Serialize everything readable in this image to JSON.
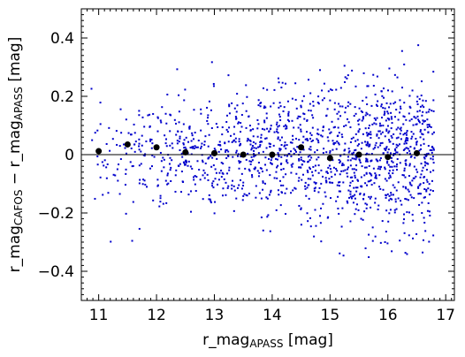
{
  "chart_data": {
    "type": "scatter",
    "xlabel": "r_mag",
    "xlabel_sub": "APASS",
    "xlabel_suffix": " [mag]",
    "ylabel_parts": {
      "a": "r_mag",
      "a_sub": "CAFOS",
      "minus": " − ",
      "b": "r_mag",
      "b_sub": "APASS",
      "suffix": " [mag]"
    },
    "xlim": [
      10.7,
      17.15
    ],
    "ylim": [
      -0.5,
      0.5
    ],
    "x_ticks": [
      11,
      12,
      13,
      14,
      15,
      16,
      17
    ],
    "x_tick_labels": [
      "11",
      "12",
      "13",
      "14",
      "15",
      "16",
      "17"
    ],
    "y_ticks": [
      -0.4,
      -0.2,
      0,
      0.2,
      0.4
    ],
    "y_tick_labels": [
      "−0.4",
      "−0.2",
      "0",
      "0.2",
      "0.4"
    ],
    "zero_line": 0,
    "grid": false,
    "legend": "none",
    "colors": {
      "points": "#0000cc",
      "binned": "#000000",
      "axis": "#000000"
    },
    "series": [
      {
        "marker": "small-dot",
        "description_hidden": false,
        "points_generated": true,
        "count": 1500,
        "x_range": [
          10.8,
          16.8
        ],
        "y_center": 0.0,
        "y_spread": 0.12
      },
      {
        "marker": "large-dot",
        "points": [
          [
            11.0,
            0.012
          ],
          [
            11.5,
            0.035
          ],
          [
            12.0,
            0.025
          ],
          [
            12.5,
            0.008
          ],
          [
            13.0,
            0.005
          ],
          [
            13.5,
            0.0
          ],
          [
            14.0,
            0.0
          ],
          [
            14.5,
            0.025
          ],
          [
            15.0,
            -0.012
          ],
          [
            15.5,
            0.0
          ],
          [
            16.0,
            -0.008
          ],
          [
            16.5,
            0.005
          ]
        ]
      }
    ]
  }
}
